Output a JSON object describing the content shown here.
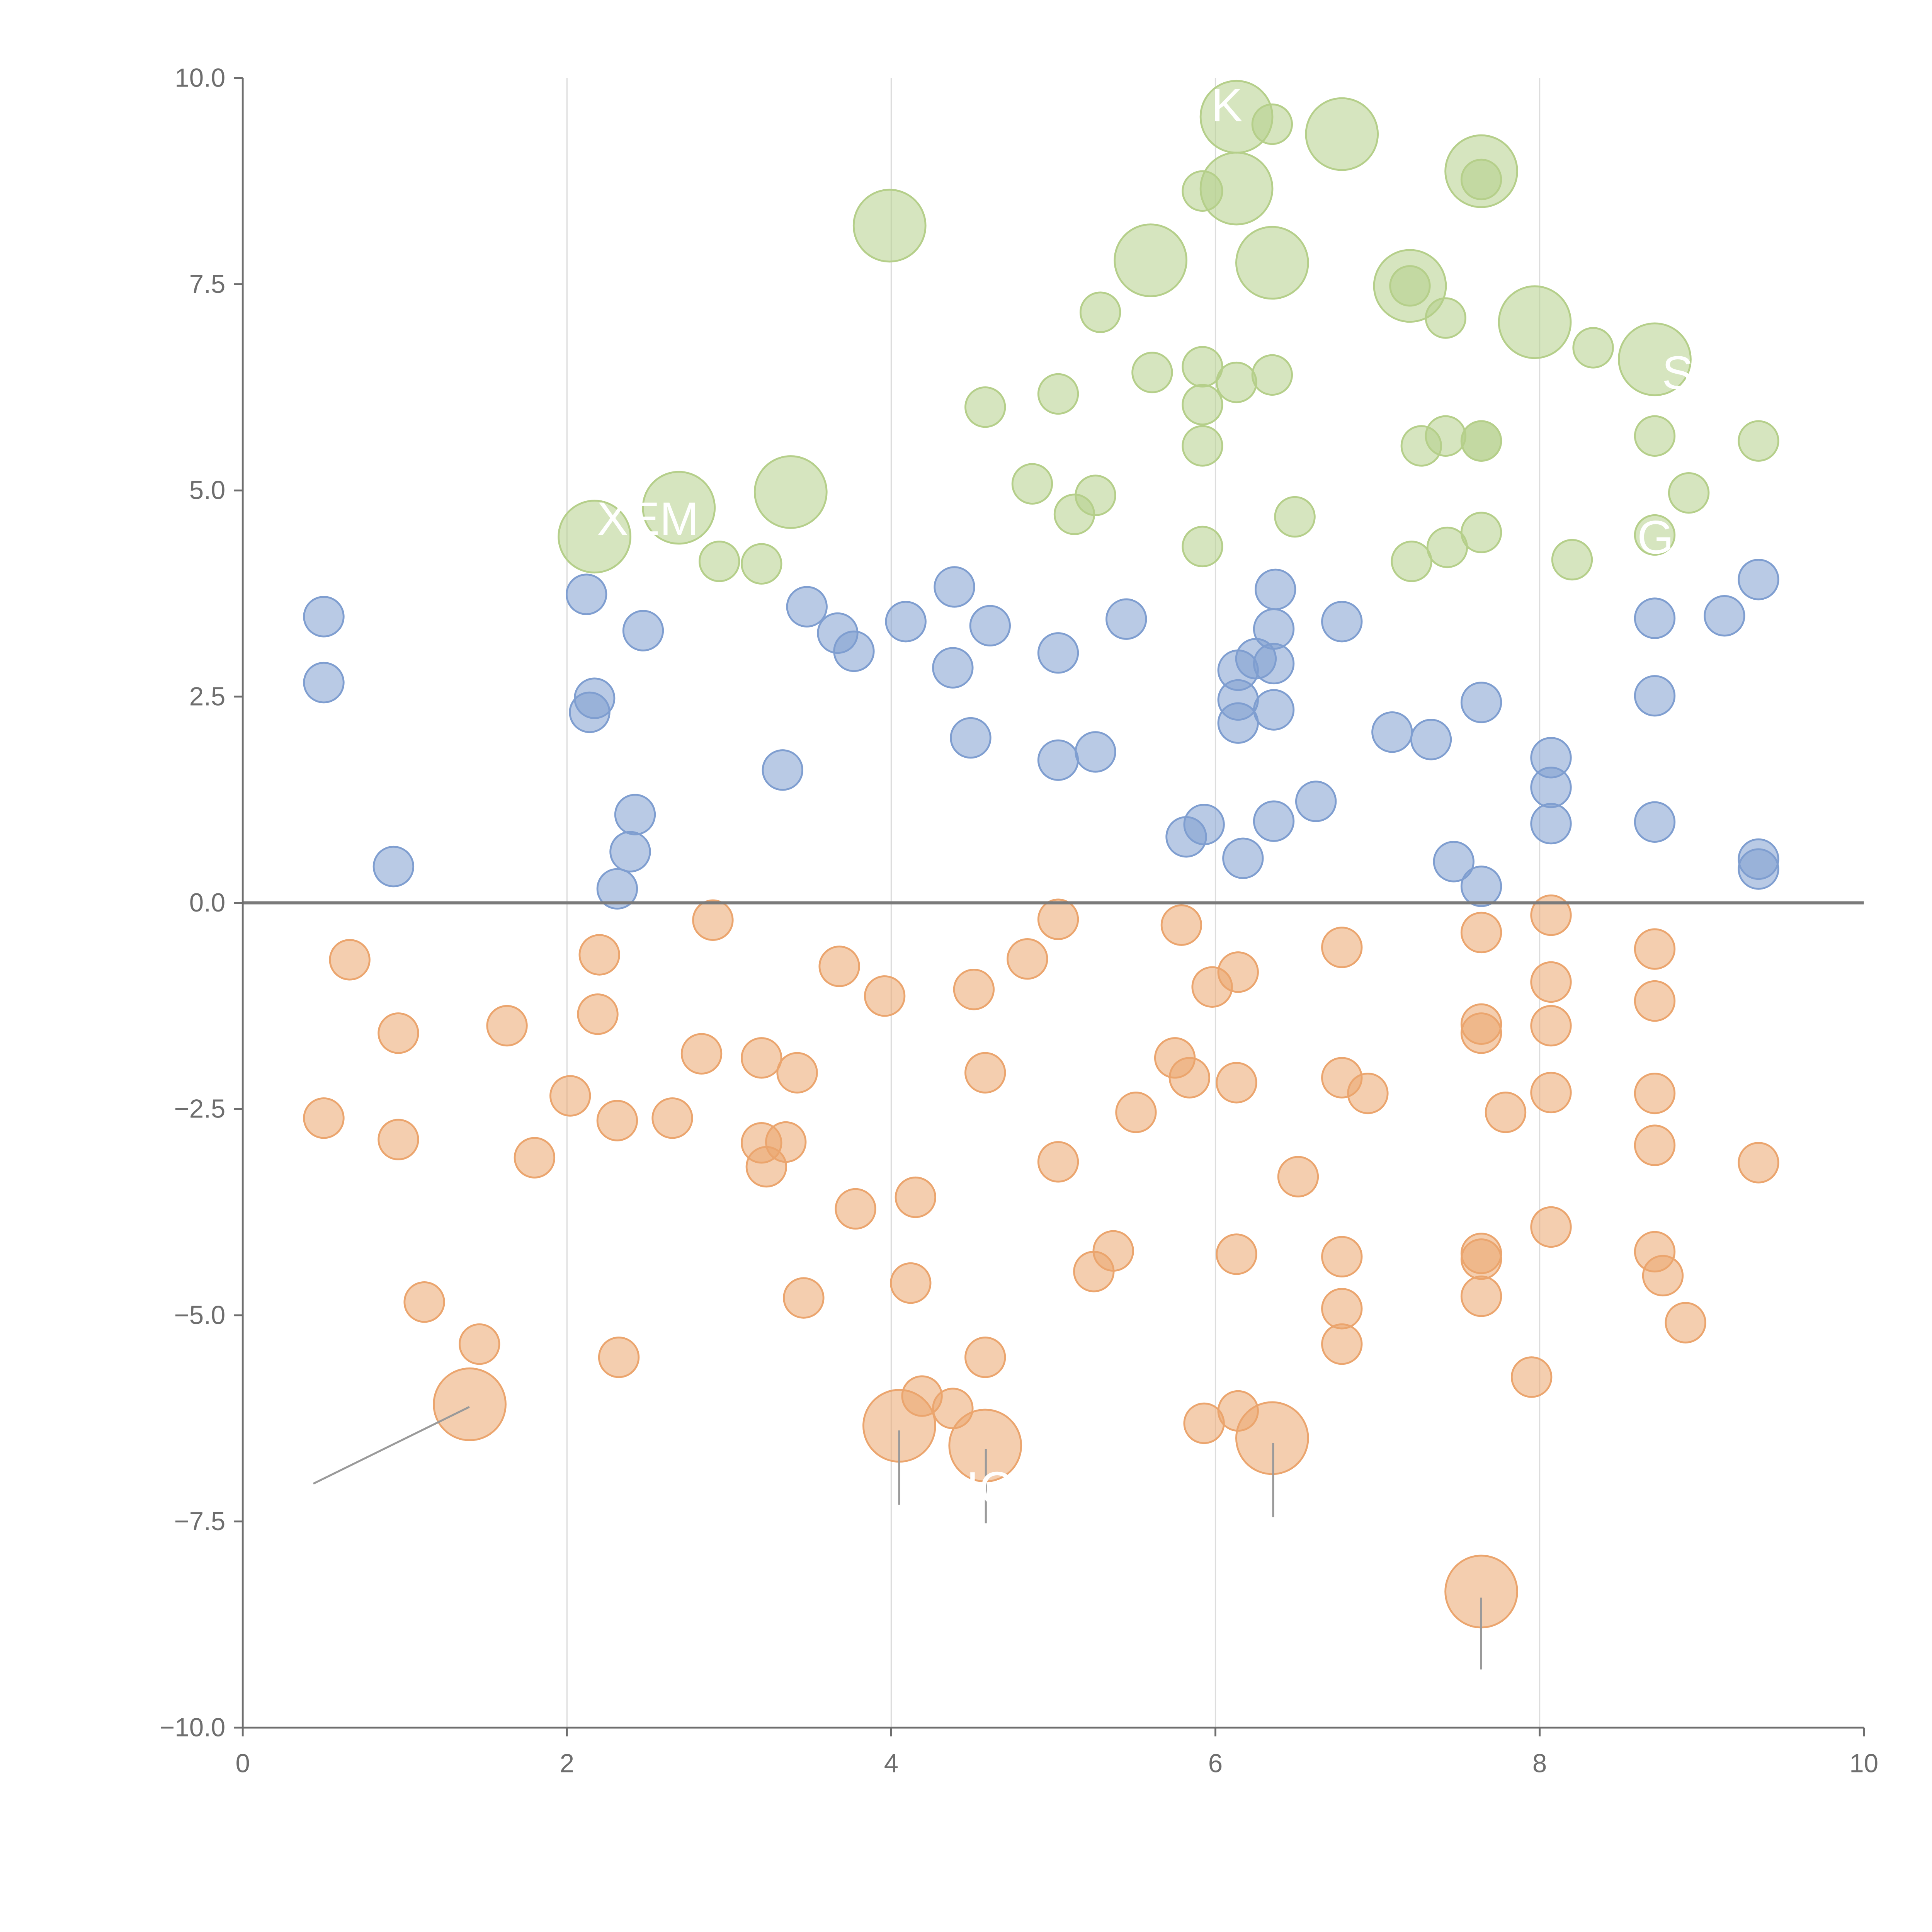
{
  "chart_data": {
    "type": "scatter",
    "title": "",
    "xlabel": "",
    "ylabel": "",
    "xlim": [
      0,
      10
    ],
    "ylim": [
      -10,
      10
    ],
    "grid": "vertical lines at major x ticks",
    "x_ticks": [
      "0",
      "2",
      "4",
      "6",
      "8",
      "10"
    ],
    "y_ticks": [
      "−10.0",
      "−7.5",
      "−5.0",
      "−2.5",
      "0.0",
      "2.5",
      "5.0",
      "7.5",
      "10.0"
    ],
    "x_tick_values": [
      0,
      2,
      4,
      6,
      8,
      10
    ],
    "y_tick_values": [
      -10,
      -7.5,
      -5,
      -2.5,
      0,
      2.5,
      5,
      7.5,
      10
    ],
    "reference_line_y": 0,
    "annotations": [
      "K",
      "XEM",
      "S",
      "G",
      "IC"
    ],
    "colors": {
      "blue": "#7f9ed0",
      "orange": "#eba56e",
      "green": "#b5cf8a",
      "axis": "#6e6e6e",
      "grid": "#dddddd"
    },
    "series": [
      {
        "name": "blue",
        "color": "#7f9ed0",
        "points": [
          [
            0.5,
            3.47,
            1
          ],
          [
            0.5,
            2.67,
            1
          ],
          [
            0.93,
            0.44,
            1
          ],
          [
            2.12,
            3.74,
            1
          ],
          [
            2.17,
            2.48,
            1
          ],
          [
            2.14,
            2.31,
            1
          ],
          [
            2.31,
            0.17,
            1
          ],
          [
            2.42,
            1.07,
            1
          ],
          [
            2.39,
            0.62,
            1
          ],
          [
            2.47,
            3.3,
            1
          ],
          [
            3.33,
            1.61,
            1
          ],
          [
            3.48,
            3.59,
            1
          ],
          [
            3.67,
            3.27,
            1
          ],
          [
            3.77,
            3.05,
            1
          ],
          [
            4.09,
            3.41,
            1
          ],
          [
            4.39,
            3.83,
            1
          ],
          [
            4.38,
            2.85,
            1
          ],
          [
            4.49,
            2.0,
            1
          ],
          [
            4.61,
            3.36,
            1
          ],
          [
            5.03,
            3.03,
            1
          ],
          [
            5.03,
            1.73,
            1
          ],
          [
            5.26,
            1.83,
            1
          ],
          [
            5.45,
            3.44,
            1
          ],
          [
            5.82,
            0.8,
            1
          ],
          [
            5.93,
            0.95,
            1
          ],
          [
            6.17,
            0.54,
            1
          ],
          [
            6.14,
            2.82,
            1
          ],
          [
            6.14,
            2.46,
            1
          ],
          [
            6.14,
            2.18,
            1
          ],
          [
            6.25,
            2.96,
            1
          ],
          [
            6.36,
            3.32,
            1
          ],
          [
            6.37,
            3.8,
            1
          ],
          [
            6.36,
            2.9,
            1
          ],
          [
            6.36,
            2.34,
            1
          ],
          [
            6.36,
            0.99,
            1
          ],
          [
            6.62,
            1.23,
            1
          ],
          [
            6.78,
            3.41,
            1
          ],
          [
            7.09,
            2.07,
            1
          ],
          [
            7.33,
            1.98,
            1
          ],
          [
            7.47,
            0.5,
            1
          ],
          [
            7.64,
            2.43,
            1
          ],
          [
            7.64,
            0.2,
            1
          ],
          [
            8.07,
            1.76,
            1
          ],
          [
            8.07,
            1.4,
            1
          ],
          [
            8.07,
            0.96,
            1
          ],
          [
            8.71,
            3.45,
            1
          ],
          [
            8.71,
            2.51,
            1
          ],
          [
            8.71,
            0.98,
            1
          ],
          [
            9.14,
            3.48,
            1
          ],
          [
            9.35,
            3.92,
            1
          ],
          [
            9.35,
            0.53,
            1
          ],
          [
            9.35,
            0.41,
            1
          ]
        ]
      },
      {
        "name": "orange",
        "color": "#eba56e",
        "points": [
          [
            0.5,
            -2.61,
            1
          ],
          [
            0.66,
            -0.69,
            1
          ],
          [
            0.96,
            -1.58,
            1
          ],
          [
            0.96,
            -2.87,
            1
          ],
          [
            1.12,
            -4.84,
            1
          ],
          [
            1.46,
            -5.35,
            1
          ],
          [
            1.4,
            -6.08,
            2
          ],
          [
            1.63,
            -1.49,
            1
          ],
          [
            1.8,
            -3.09,
            1
          ],
          [
            2.02,
            -2.34,
            1
          ],
          [
            2.2,
            -0.63,
            1
          ],
          [
            2.19,
            -1.35,
            1
          ],
          [
            2.31,
            -2.64,
            1
          ],
          [
            2.32,
            -5.51,
            1
          ],
          [
            2.65,
            -2.61,
            1
          ],
          [
            2.83,
            -1.83,
            1
          ],
          [
            2.9,
            -0.21,
            1
          ],
          [
            3.2,
            -1.88,
            1
          ],
          [
            3.2,
            -2.91,
            1
          ],
          [
            3.23,
            -3.2,
            1
          ],
          [
            3.35,
            -2.9,
            1
          ],
          [
            3.42,
            -2.06,
            1
          ],
          [
            3.46,
            -4.79,
            1
          ],
          [
            3.68,
            -0.77,
            1
          ],
          [
            3.78,
            -3.71,
            1
          ],
          [
            3.96,
            -1.13,
            1
          ],
          [
            4.05,
            -6.34,
            2
          ],
          [
            4.12,
            -4.61,
            1
          ],
          [
            4.15,
            -3.57,
            1
          ],
          [
            4.19,
            -5.98,
            1
          ],
          [
            4.38,
            -6.13,
            1
          ],
          [
            4.51,
            -1.05,
            1
          ],
          [
            4.58,
            -2.06,
            1
          ],
          [
            4.58,
            -5.51,
            1
          ],
          [
            4.58,
            -6.58,
            2
          ],
          [
            4.84,
            -0.68,
            1
          ],
          [
            5.03,
            -3.14,
            1
          ],
          [
            5.03,
            -0.2,
            1
          ],
          [
            5.25,
            -4.47,
            1
          ],
          [
            5.37,
            -4.22,
            1
          ],
          [
            5.51,
            -2.54,
            1
          ],
          [
            5.75,
            -1.88,
            1
          ],
          [
            5.79,
            -0.27,
            1
          ],
          [
            5.84,
            -2.12,
            1
          ],
          [
            5.93,
            -6.31,
            1
          ],
          [
            5.98,
            -1.02,
            1
          ],
          [
            6.14,
            -0.84,
            1
          ],
          [
            6.13,
            -2.18,
            1
          ],
          [
            6.13,
            -4.26,
            1
          ],
          [
            6.14,
            -6.16,
            1
          ],
          [
            6.35,
            -6.49,
            2
          ],
          [
            6.51,
            -3.32,
            1
          ],
          [
            6.78,
            -0.54,
            1
          ],
          [
            6.78,
            -2.12,
            1
          ],
          [
            6.78,
            -4.29,
            1
          ],
          [
            6.78,
            -4.92,
            1
          ],
          [
            6.78,
            -5.35,
            1
          ],
          [
            6.94,
            -2.31,
            1
          ],
          [
            7.64,
            -0.36,
            1
          ],
          [
            7.64,
            -1.47,
            1
          ],
          [
            7.64,
            -1.58,
            1
          ],
          [
            7.64,
            -4.25,
            1
          ],
          [
            7.64,
            -4.32,
            1
          ],
          [
            7.64,
            -4.77,
            1
          ],
          [
            7.64,
            -8.35,
            2
          ],
          [
            7.79,
            -2.54,
            1
          ],
          [
            7.95,
            -5.75,
            1
          ],
          [
            8.07,
            -0.15,
            1
          ],
          [
            8.07,
            -0.96,
            1
          ],
          [
            8.07,
            -1.49,
            1
          ],
          [
            8.07,
            -2.3,
            1
          ],
          [
            8.07,
            -3.93,
            1
          ],
          [
            8.71,
            -0.56,
            1
          ],
          [
            8.71,
            -1.19,
            1
          ],
          [
            8.71,
            -2.31,
            1
          ],
          [
            8.71,
            -2.94,
            1
          ],
          [
            8.71,
            -4.23,
            1
          ],
          [
            8.76,
            -4.52,
            1
          ],
          [
            8.9,
            -5.09,
            1
          ],
          [
            9.35,
            -3.15,
            1
          ]
        ]
      },
      {
        "name": "green",
        "color": "#b5cf8a",
        "points": [
          [
            2.17,
            4.44,
            2
          ],
          [
            2.69,
            4.79,
            2
          ],
          [
            2.94,
            4.14,
            1
          ],
          [
            3.2,
            4.11,
            1
          ],
          [
            3.38,
            4.98,
            2
          ],
          [
            3.99,
            8.21,
            2
          ],
          [
            4.58,
            6.01,
            1
          ],
          [
            4.87,
            5.08,
            1
          ],
          [
            5.03,
            6.17,
            1
          ],
          [
            5.13,
            4.71,
            1
          ],
          [
            5.26,
            4.94,
            1
          ],
          [
            5.29,
            7.16,
            1
          ],
          [
            5.6,
            7.79,
            2
          ],
          [
            5.61,
            6.43,
            1
          ],
          [
            5.92,
            8.63,
            1
          ],
          [
            5.92,
            6.5,
            1
          ],
          [
            5.92,
            6.04,
            1
          ],
          [
            5.92,
            5.54,
            1
          ],
          [
            5.92,
            4.32,
            1
          ],
          [
            6.13,
            9.53,
            2
          ],
          [
            6.13,
            8.66,
            2
          ],
          [
            6.13,
            6.31,
            1
          ],
          [
            6.35,
            9.44,
            1
          ],
          [
            6.35,
            7.76,
            2
          ],
          [
            6.35,
            6.4,
            1
          ],
          [
            6.49,
            4.68,
            1
          ],
          [
            6.78,
            9.32,
            2
          ],
          [
            7.2,
            7.48,
            2
          ],
          [
            7.2,
            7.48,
            1
          ],
          [
            7.21,
            4.14,
            1
          ],
          [
            7.27,
            5.54,
            1
          ],
          [
            7.42,
            7.09,
            1
          ],
          [
            7.42,
            5.66,
            1
          ],
          [
            7.43,
            4.31,
            1
          ],
          [
            7.64,
            8.87,
            2
          ],
          [
            7.64,
            8.77,
            1
          ],
          [
            7.64,
            5.6,
            1
          ],
          [
            7.64,
            5.6,
            1
          ],
          [
            7.64,
            4.49,
            1
          ],
          [
            7.97,
            7.04,
            2
          ],
          [
            8.2,
            4.16,
            1
          ],
          [
            8.33,
            6.73,
            1
          ],
          [
            8.71,
            6.59,
            2
          ],
          [
            8.71,
            5.66,
            1
          ],
          [
            8.71,
            4.46,
            1
          ],
          [
            8.92,
            4.97,
            1
          ],
          [
            9.35,
            5.6,
            1
          ]
        ]
      }
    ]
  }
}
